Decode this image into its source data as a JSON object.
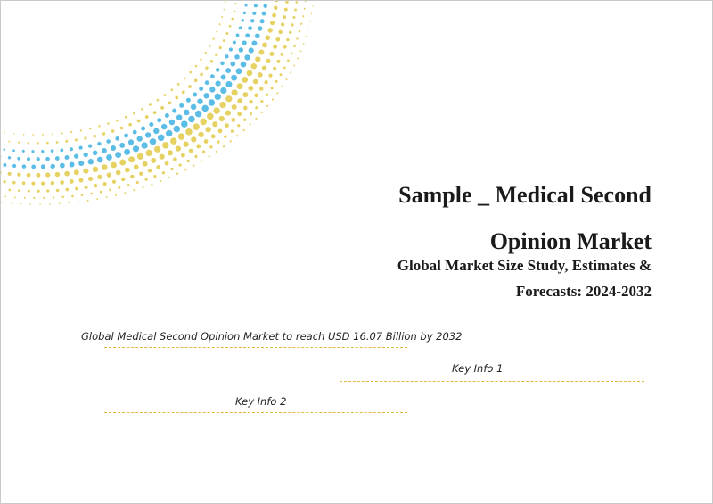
{
  "document": {
    "title_lines": [
      "Sample _ Medical Second",
      "Opinion Market"
    ],
    "subtitle_lines": [
      "Global Market Size Study, Estimates &",
      "Forecasts: 2024-2032"
    ],
    "key_lines": [
      "Global Medical Second Opinion Market to reach USD 16.07 Billion by 2032",
      "Key Info 1",
      "Key Info 2"
    ]
  },
  "graphic": {
    "name": "dotted-arc-graphic",
    "colors": {
      "blue": "#5bbde6",
      "yellow": "#e6d163",
      "rule": "#e2b63a"
    }
  }
}
